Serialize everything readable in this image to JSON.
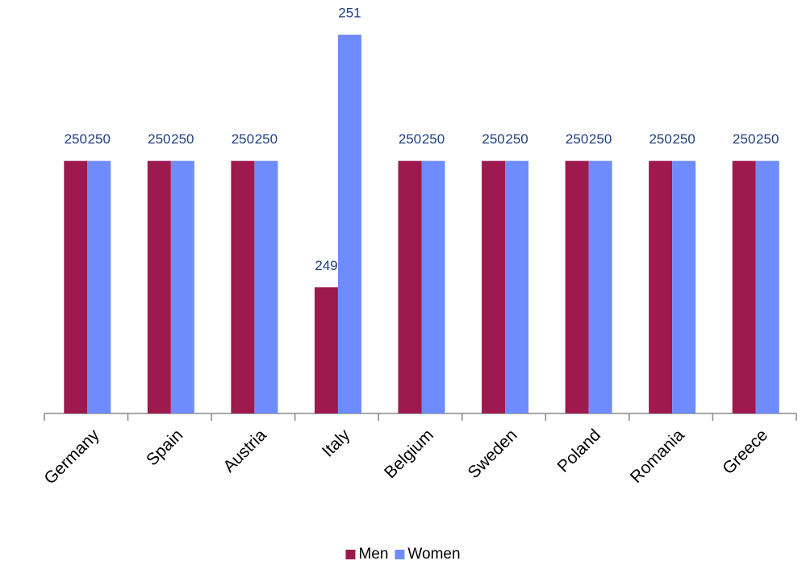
{
  "chart_data": {
    "type": "bar",
    "categories": [
      "Germany",
      "Spain",
      "Austria",
      "Italy",
      "Belgium",
      "Sweden",
      "Poland",
      "Romania",
      "Greece"
    ],
    "series": [
      {
        "name": "Men",
        "color": "#9e1a4e",
        "values": [
          250,
          250,
          250,
          249,
          250,
          250,
          250,
          250,
          250
        ]
      },
      {
        "name": "Women",
        "color": "#6f8cff",
        "values": [
          250,
          250,
          250,
          251,
          250,
          250,
          250,
          250,
          250
        ]
      }
    ],
    "ylim": [
      248,
      251
    ],
    "legend": "bottom"
  }
}
